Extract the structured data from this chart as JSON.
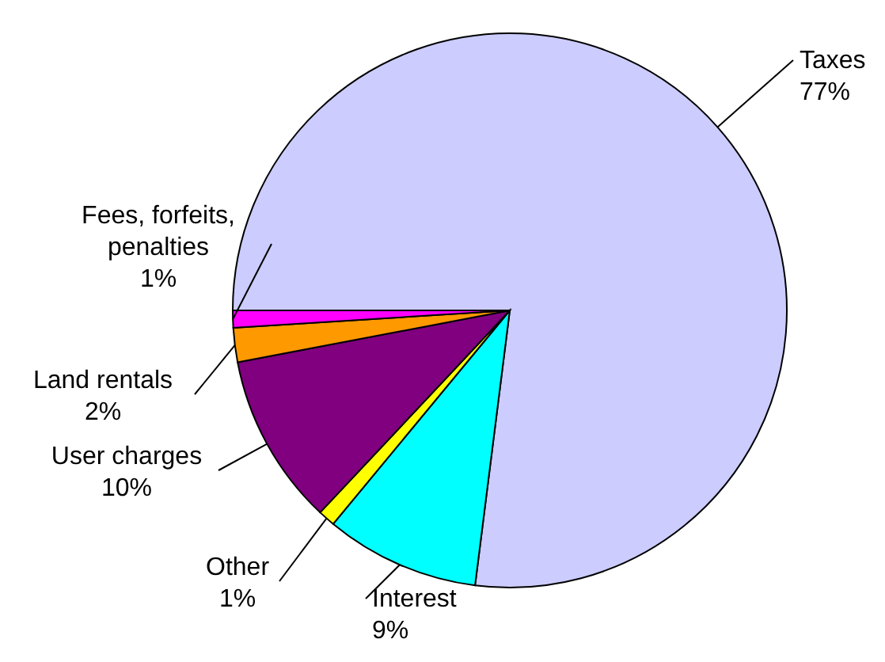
{
  "chart_data": {
    "type": "pie",
    "categories": [
      "Taxes",
      "Interest",
      "Other",
      "User charges",
      "Land rentals",
      "Fees, forfeits, penalties"
    ],
    "values": [
      77,
      9,
      1,
      10,
      2,
      1
    ],
    "colors": [
      "#ccccff",
      "#00ffff",
      "#ffff00",
      "#800080",
      "#ff9900",
      "#ff00ff"
    ],
    "value_labels": [
      "77%",
      "9%",
      "1%",
      "10%",
      "2%",
      "1%"
    ]
  }
}
